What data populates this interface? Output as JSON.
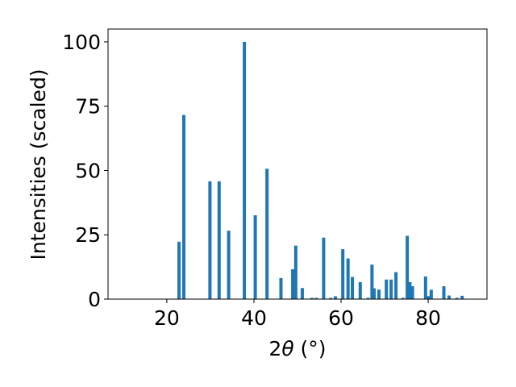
{
  "chart_data": {
    "type": "bar",
    "xlabel_prefix": "2",
    "xlabel_theta": "θ",
    "xlabel_unit": " (°)",
    "ylabel": "Intensities (scaled)",
    "xlim": [
      6.5,
      93.5
    ],
    "ylim": [
      0,
      105
    ],
    "xticks": [
      20,
      40,
      60,
      80
    ],
    "yticks": [
      0,
      25,
      50,
      75,
      100
    ],
    "bar_color": "#1f77b4",
    "grid": false,
    "x": [
      22.8,
      23.9,
      29.9,
      32.0,
      34.2,
      37.8,
      40.3,
      43.0,
      46.2,
      48.9,
      49.6,
      51.1,
      53.3,
      54.3,
      56.0,
      57.6,
      58.7,
      60.4,
      61.6,
      62.6,
      64.4,
      66.2,
      67.1,
      67.6,
      68.7,
      70.4,
      71.5,
      72.6,
      74.2,
      75.2,
      75.8,
      76.4,
      79.4,
      80.1,
      80.7,
      83.6,
      84.8,
      86.6,
      87.8
    ],
    "values": [
      22.3,
      71.6,
      45.8,
      45.8,
      26.6,
      100,
      32.6,
      50.7,
      8.2,
      11.6,
      20.8,
      4.3,
      0.5,
      0.5,
      23.9,
      0.5,
      1.1,
      19.4,
      15.8,
      8.6,
      6.6,
      0.5,
      13.4,
      4.2,
      3.7,
      7.6,
      7.6,
      10.5,
      0.5,
      24.6,
      6.6,
      5.0,
      8.8,
      1.2,
      3.6,
      5.0,
      1.4,
      0.5,
      1.3
    ]
  }
}
